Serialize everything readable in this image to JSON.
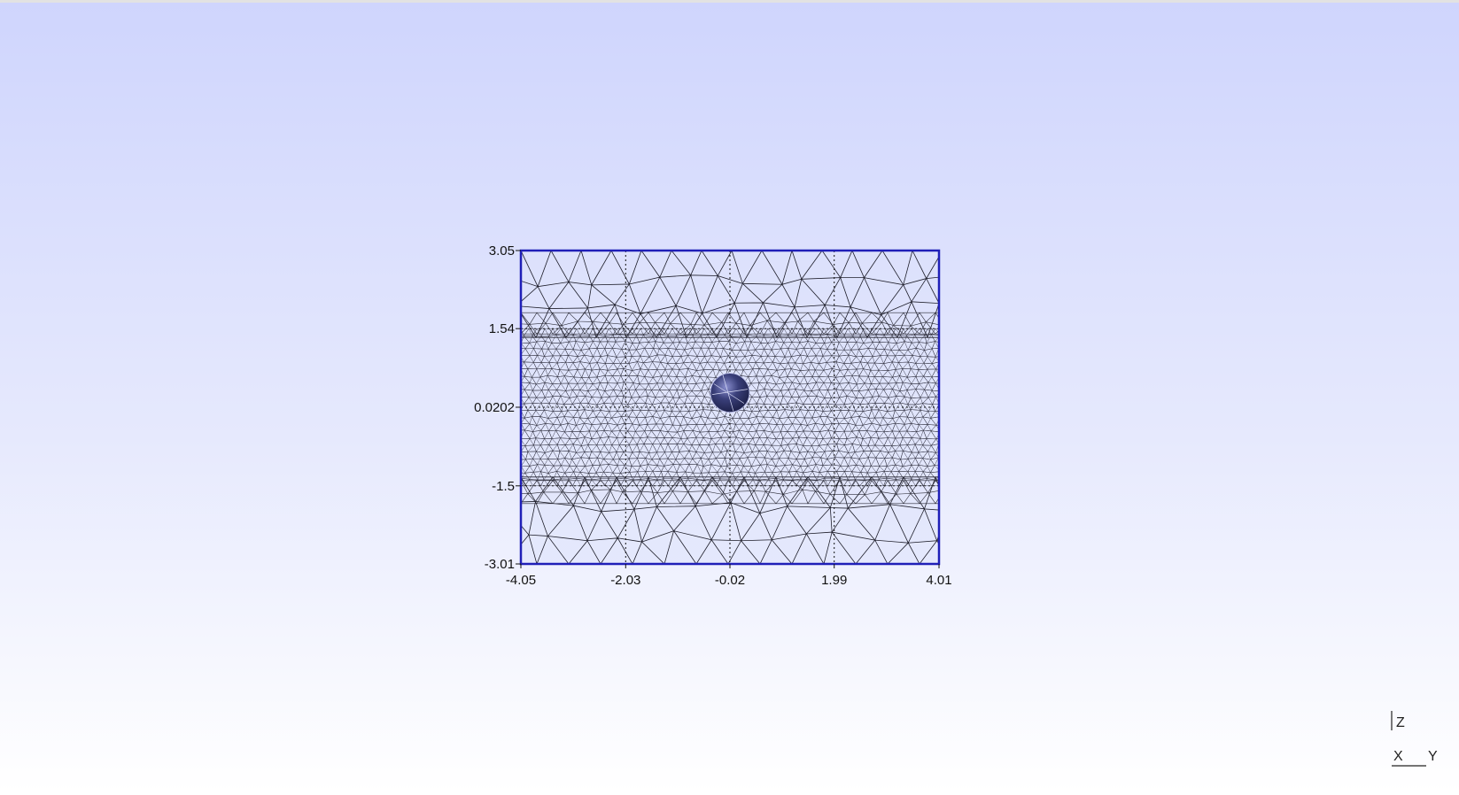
{
  "chart_data": {
    "type": "mesh",
    "x_ticks": [
      "-4.05",
      "-2.03",
      "-0.02",
      "1.99",
      "4.01"
    ],
    "y_ticks": [
      "3.05",
      "1.54",
      "0.0202",
      "-1.5",
      "-3.01"
    ],
    "xlim": [
      -4.05,
      4.01
    ],
    "ylim": [
      -3.01,
      3.05
    ],
    "grid": true,
    "refined_band_y": [
      -1.5,
      1.54
    ],
    "obstacle": {
      "center": [
        -0.02,
        0.3
      ],
      "radius": 0.4
    }
  },
  "orientation_axes": {
    "labels": {
      "z": "Z",
      "x": "X",
      "y": "Y"
    }
  },
  "colors": {
    "background_top": "#cfd5fd",
    "background_bottom": "#ffffff",
    "domain_border": "#1f1fb8",
    "mesh_lines": "#222222",
    "obstacle": "#3a3f7a"
  }
}
